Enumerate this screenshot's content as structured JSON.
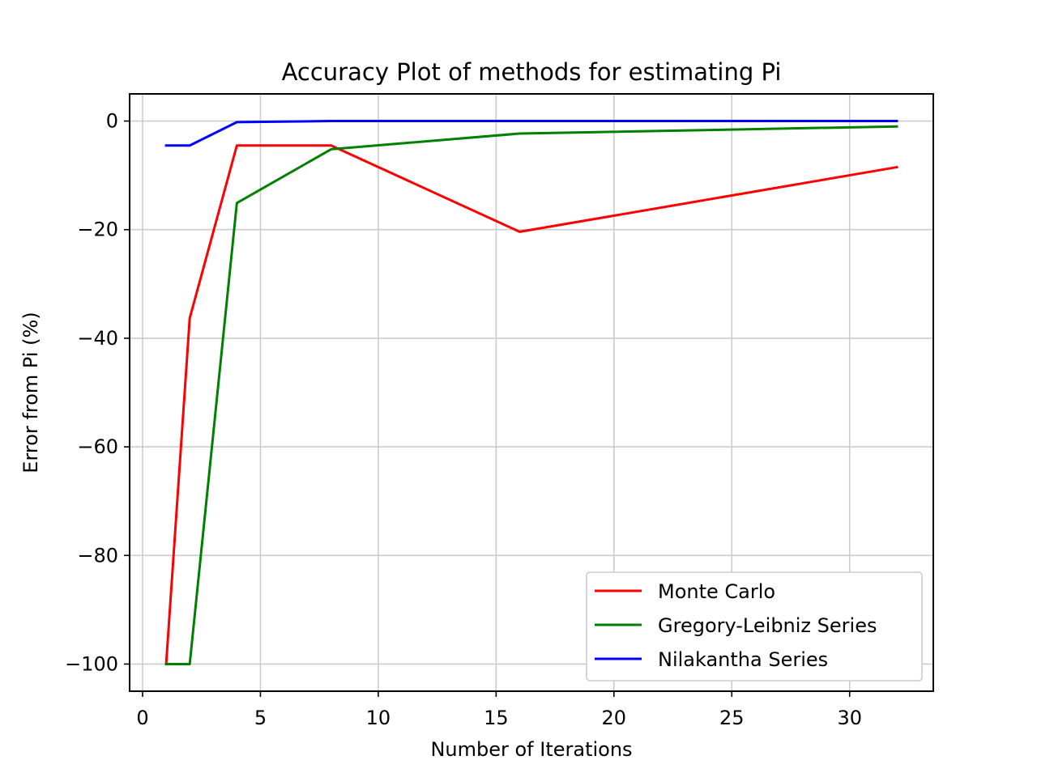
{
  "chart_data": {
    "type": "line",
    "title": "Accuracy Plot of methods for estimating Pi",
    "xlabel": "Number of Iterations",
    "ylabel": "Error from Pi (%)",
    "x": [
      1,
      2,
      4,
      8,
      16,
      32
    ],
    "xlim": [
      -0.55,
      33.55
    ],
    "ylim": [
      -105,
      5
    ],
    "xticks": [
      0,
      5,
      10,
      15,
      20,
      25,
      30
    ],
    "yticks": [
      0,
      -20,
      -40,
      -60,
      -80,
      -100
    ],
    "xtick_labels": [
      "0",
      "5",
      "10",
      "15",
      "20",
      "25",
      "30"
    ],
    "ytick_labels": [
      "0",
      "−20",
      "−40",
      "−60",
      "−80",
      "−100"
    ],
    "grid": true,
    "legend_position": "lower-right",
    "series": [
      {
        "name": "Monte Carlo",
        "color": "#ff0000",
        "values": [
          -100,
          -36.3,
          -4.5,
          -4.5,
          -20.4,
          -8.5
        ]
      },
      {
        "name": "Gregory-Leibniz Series",
        "color": "#008000",
        "values": [
          -100,
          -100,
          -15.1,
          -5.2,
          -2.3,
          -1.0
        ]
      },
      {
        "name": "Nilakantha Series",
        "color": "#0000ff",
        "values": [
          -4.5,
          -4.5,
          -0.2,
          0,
          0,
          0
        ]
      }
    ]
  }
}
